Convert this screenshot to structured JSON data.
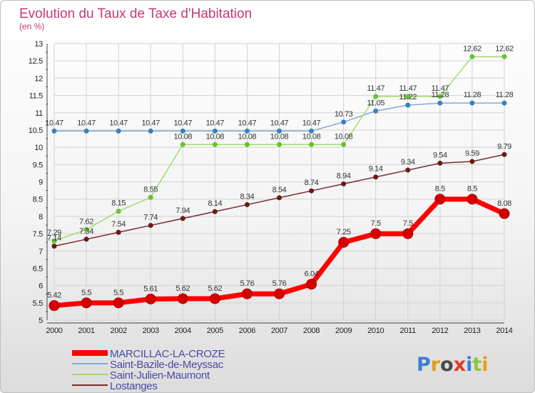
{
  "title": "Evolution du Taux de Taxe d'Habitation",
  "unit": "(en %)",
  "logo": {
    "text": "Proxiti",
    "colors": [
      "#3d7fd1",
      "#e8a013",
      "#4a4a4a",
      "#e03a2a",
      "#3d7fd1",
      "#8cc63f",
      "#e8a013"
    ]
  },
  "chart_data": {
    "type": "line",
    "x": [
      2000,
      2001,
      2002,
      2003,
      2004,
      2005,
      2006,
      2007,
      2008,
      2009,
      2010,
      2011,
      2012,
      2013,
      2014
    ],
    "ylim": [
      5,
      13
    ],
    "yticks": [
      5,
      5.5,
      6,
      6.5,
      7,
      7.5,
      8,
      8.5,
      9,
      9.5,
      10,
      10.5,
      11,
      11.5,
      12,
      12.5,
      13
    ],
    "grid": true,
    "legend_position": "bottom-left",
    "series": [
      {
        "name": "MARCILLAC-LA-CROZE",
        "color": "#ff0000",
        "marker": "#d40000",
        "values": [
          5.42,
          5.5,
          5.5,
          5.61,
          5.62,
          5.62,
          5.76,
          5.76,
          6.04,
          7.25,
          7.5,
          7.5,
          8.5,
          8.5,
          8.08
        ]
      },
      {
        "name": "Saint-Bazile-de-Meyssac",
        "color": "#7fadd8",
        "marker": "#3a7fc0",
        "values": [
          10.47,
          10.47,
          10.47,
          10.47,
          10.47,
          10.47,
          10.47,
          10.47,
          10.47,
          10.73,
          11.05,
          11.22,
          11.28,
          11.28,
          11.28
        ]
      },
      {
        "name": "Saint-Julien-Maumont",
        "color": "#9fdc6e",
        "marker": "#66c233",
        "values": [
          7.29,
          7.62,
          8.15,
          8.55,
          10.08,
          10.08,
          10.08,
          10.08,
          10.08,
          10.08,
          11.47,
          11.47,
          11.47,
          12.62,
          12.62
        ]
      },
      {
        "name": "Lostanges",
        "color": "#7a2a2a",
        "marker": "#6b1a1a",
        "values": [
          7.14,
          7.34,
          7.54,
          7.74,
          7.94,
          8.14,
          8.34,
          8.54,
          8.74,
          8.94,
          9.14,
          9.34,
          9.54,
          9.59,
          9.79
        ]
      }
    ]
  }
}
